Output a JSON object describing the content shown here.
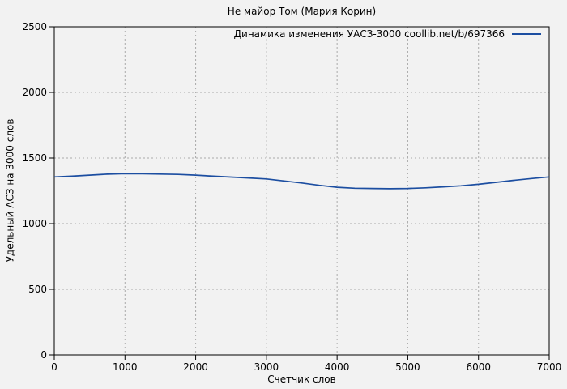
{
  "chart_data": {
    "type": "line",
    "title": "Не майор Том (Мария Корин)",
    "xlabel": "Счетчик слов",
    "ylabel": "Удельный АСЗ на 3000 слов",
    "xlim": [
      0,
      7000
    ],
    "ylim": [
      0,
      2500
    ],
    "xticks": [
      0,
      1000,
      2000,
      3000,
      4000,
      5000,
      6000,
      7000
    ],
    "yticks": [
      0,
      500,
      1000,
      1500,
      2000,
      2500
    ],
    "grid": true,
    "legend_position": "top-right-inside",
    "colors": {
      "background": "#f2f2f2",
      "grid": "#aaaaaa",
      "axis": "#000000",
      "line": "#1c4ea1"
    },
    "series": [
      {
        "name": "Динамика изменения УАСЗ-3000 coollib.net/b/697366",
        "color": "#1c4ea1",
        "x": [
          0,
          250,
          500,
          750,
          1000,
          1250,
          1500,
          1750,
          2000,
          2250,
          2500,
          2750,
          3000,
          3250,
          3500,
          3750,
          4000,
          4250,
          4500,
          4750,
          5000,
          5250,
          5500,
          5750,
          6000,
          6250,
          6500,
          6750,
          7000
        ],
        "y": [
          1356,
          1362,
          1370,
          1377,
          1381,
          1380,
          1378,
          1375,
          1370,
          1362,
          1355,
          1348,
          1341,
          1325,
          1310,
          1292,
          1277,
          1270,
          1268,
          1266,
          1268,
          1273,
          1280,
          1288,
          1300,
          1315,
          1330,
          1344,
          1356
        ]
      }
    ]
  }
}
